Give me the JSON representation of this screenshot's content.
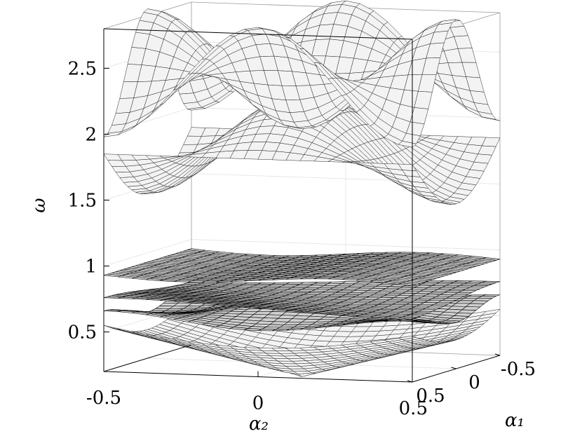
{
  "chart_data": {
    "type": "surface",
    "title": "",
    "x_axis": {
      "label": "α₂",
      "ticks": [
        "-0.5",
        "0",
        "0.5"
      ],
      "range": [
        -0.5,
        0.5
      ]
    },
    "y_axis": {
      "label": "α₁",
      "ticks": [
        "0.5",
        "0",
        "-0.5"
      ],
      "range": [
        -0.5,
        0.5
      ]
    },
    "z_axis": {
      "label": "ω",
      "ticks": [
        "0.5",
        "1",
        "1.5",
        "2",
        "2.5"
      ],
      "range": [
        0.2,
        2.8
      ]
    },
    "grid": true,
    "series": [
      {
        "band": 1,
        "z_min": 0.1,
        "z_max": 0.55
      },
      {
        "band": 2,
        "z_min": 0.55,
        "z_max": 0.66
      },
      {
        "band": 3,
        "z_min": 0.68,
        "z_max": 0.76
      },
      {
        "band": 4,
        "z_min": 0.88,
        "z_max": 0.98
      },
      {
        "band": 5,
        "z_min": 1.45,
        "z_max": 2.25
      },
      {
        "band": 6,
        "z_min": 1.98,
        "z_max": 2.85
      }
    ]
  }
}
